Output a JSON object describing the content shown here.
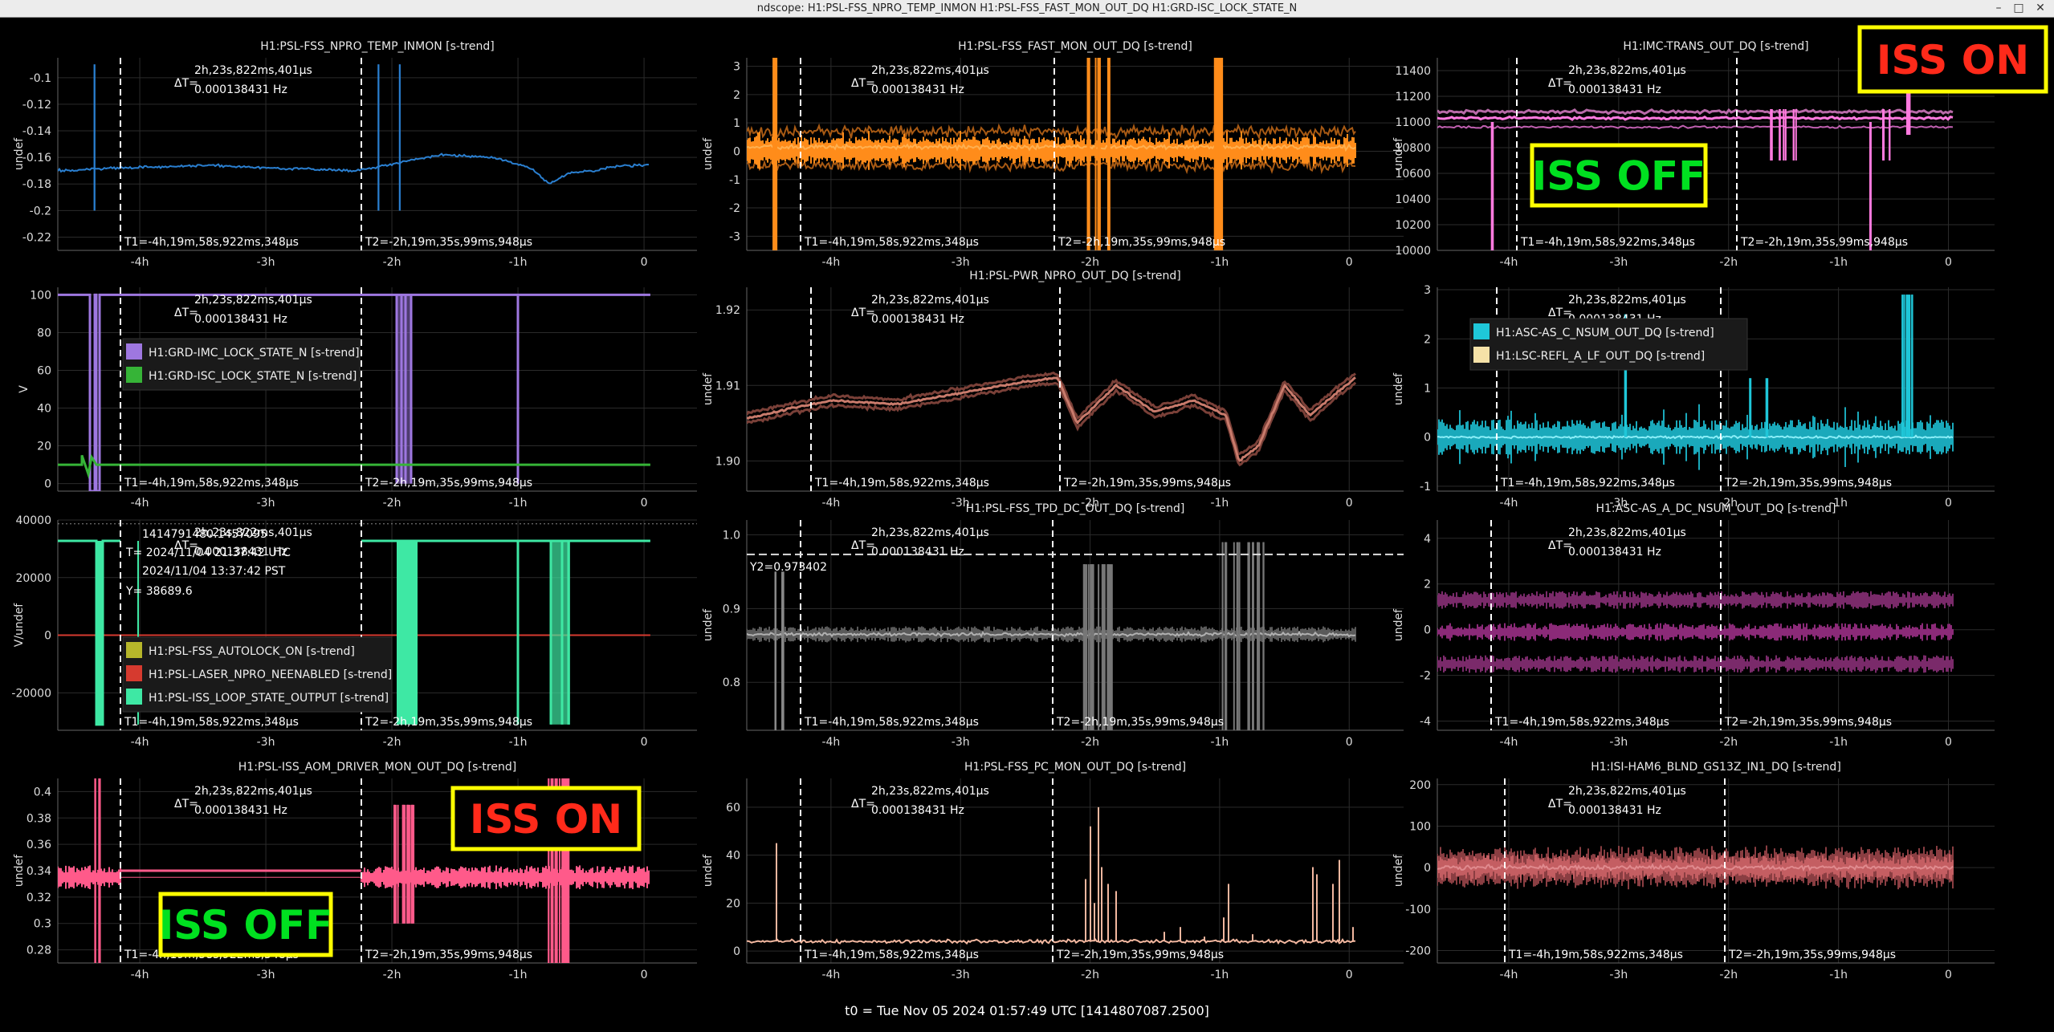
{
  "window": {
    "title": "ndscope: H1:PSL-FSS_NPRO_TEMP_INMON H1:PSL-FSS_FAST_MON_OUT_DQ H1:GRD-ISC_LOCK_STATE_N",
    "controls": [
      "–",
      "□",
      "✕"
    ]
  },
  "cursors": {
    "delta": "ΔT=",
    "delta_time": "2h,23s,822ms,401µs",
    "delta_freq": "0.000138431 Hz",
    "t1": "T1=-4h,19m,58s,922ms,348µs",
    "t2": "T2=-2h,19m,35s,99ms,948µs"
  },
  "xaxis": {
    "ticks": [
      -4,
      -3,
      -2,
      -1,
      0
    ],
    "tick_labels": [
      "-4h",
      "-3h",
      "-2h",
      "-1h",
      "0"
    ],
    "range": [
      -4.65,
      0.42
    ]
  },
  "annotations": {
    "iss_on": "ISS ON",
    "iss_off": "ISS OFF"
  },
  "footer": "t0 = Tue Nov 05 2024 01:57:49 UTC [1414807087.2500]",
  "colors": {
    "background": "#000000",
    "grid": "#2b2b2b",
    "cursor": "#ffffff",
    "iss_on_text": "#ff2a1a",
    "iss_off_text": "#00e020",
    "callout_border": "#ffff00"
  },
  "chart_data": [
    {
      "id": "p11",
      "type": "line",
      "title": "H1:PSL-FSS_NPRO_TEMP_INMON [s-trend]",
      "ylabel": "undef",
      "ylim": [
        -0.23,
        -0.085
      ],
      "yticks": [
        -0.1,
        -0.12,
        -0.14,
        -0.16,
        -0.18,
        -0.2,
        -0.22
      ],
      "ytick_labels": [
        "-0.1",
        "-0.12",
        "-0.14",
        "-0.16",
        "-0.18",
        "-0.2",
        "-0.22"
      ],
      "color": "#2a7fd0",
      "style": "temp",
      "series": [
        {
          "x": [
            -4.6,
            -4.2,
            -3.8,
            -3.4,
            -3.0,
            -2.6,
            -2.3,
            -2.0,
            -1.6,
            -1.2,
            -0.9,
            -0.75,
            -0.6,
            -0.4,
            -0.2,
            0.05
          ],
          "values": [
            -0.17,
            -0.168,
            -0.167,
            -0.166,
            -0.168,
            -0.169,
            -0.17,
            -0.165,
            -0.158,
            -0.16,
            -0.168,
            -0.18,
            -0.172,
            -0.17,
            -0.166,
            -0.166
          ]
        }
      ]
    },
    {
      "id": "p12",
      "type": "line",
      "title": "H1:PSL-FSS_FAST_MON_OUT_DQ [s-trend]",
      "ylabel": "undef",
      "ylim": [
        -3.5,
        3.3
      ],
      "yticks": [
        3,
        2,
        1,
        0,
        -1,
        -2,
        -3
      ],
      "ytick_labels": [
        "3",
        "2",
        "1",
        "0",
        "-1",
        "-2",
        "-3"
      ],
      "color": "#ff8c1a",
      "style": "fast",
      "series": [
        {
          "name": "mean",
          "values": [
            0.2
          ]
        },
        {
          "name": "min",
          "values": [
            -0.3
          ]
        },
        {
          "name": "max",
          "values": [
            0.7
          ]
        }
      ]
    },
    {
      "id": "p13",
      "type": "line",
      "title": "H1:IMC-TRANS_OUT_DQ [s-trend]",
      "ylabel": "undef",
      "ylim": [
        10000,
        11500
      ],
      "yticks": [
        11400,
        11200,
        11000,
        10800,
        10600,
        10400,
        10200,
        10000
      ],
      "ytick_labels": [
        "11400",
        "11200",
        "11000",
        "10800",
        "10600",
        "10400",
        "10200",
        "10000"
      ],
      "color": "#ff7adf",
      "style": "imc",
      "series": [
        {
          "name": "max",
          "values": [
            11080
          ]
        },
        {
          "name": "mean",
          "values": [
            11030
          ]
        },
        {
          "name": "min",
          "values": [
            10960
          ]
        }
      ]
    },
    {
      "id": "p21",
      "type": "line",
      "title": "",
      "ylabel": "V",
      "ylim": [
        -4,
        104
      ],
      "yticks": [
        100,
        80,
        60,
        40,
        20,
        0
      ],
      "ytick_labels": [
        "100",
        "80",
        "60",
        "40",
        "20",
        "0"
      ],
      "style": "grd",
      "legend": [
        {
          "name": "H1:GRD-IMC_LOCK_STATE_N [s-trend]",
          "color": "#9e77e0"
        },
        {
          "name": "H1:GRD-ISC_LOCK_STATE_N [s-trend]",
          "color": "#36b437"
        }
      ],
      "series": [
        {
          "name": "H1:GRD-IMC_LOCK_STATE_N [s-trend]",
          "values": [
            100
          ]
        },
        {
          "name": "H1:GRD-ISC_LOCK_STATE_N [s-trend]",
          "values": [
            10
          ]
        }
      ]
    },
    {
      "id": "p22",
      "type": "line",
      "title": "H1:PSL-PWR_NPRO_OUT_DQ [s-trend]",
      "ylabel": "undef",
      "ylim": [
        1.896,
        1.923
      ],
      "yticks": [
        1.92,
        1.91,
        1.9
      ],
      "ytick_labels": [
        "1.92",
        "1.91",
        "1.90"
      ],
      "color": "#c97b6c",
      "style": "pwr",
      "series": [
        {
          "x": [
            -4.7,
            -4.55,
            -4.3,
            -4.0,
            -3.5,
            -3.0,
            -2.5,
            -2.25,
            -2.1,
            -1.8,
            -1.5,
            -1.2,
            -0.95,
            -0.85,
            -0.7,
            -0.5,
            -0.3,
            -0.1,
            0.05
          ],
          "values": [
            1.9055,
            1.906,
            1.907,
            1.908,
            1.9075,
            1.909,
            1.9105,
            1.911,
            1.905,
            1.91,
            1.9065,
            1.908,
            1.906,
            1.9,
            1.902,
            1.91,
            1.906,
            1.909,
            1.911
          ]
        }
      ]
    },
    {
      "id": "p23",
      "type": "line",
      "title": "",
      "ylabel": "undef",
      "ylim": [
        -1.1,
        3.05
      ],
      "yticks": [
        3,
        2,
        1,
        0,
        -1
      ],
      "ytick_labels": [
        "3",
        "2",
        "1",
        "0",
        "-1"
      ],
      "style": "asc",
      "legend": [
        {
          "name": "H1:ASC-AS_C_NSUM_OUT_DQ [s-trend]",
          "color": "#1fc7d9"
        },
        {
          "name": "H1:LSC-REFL_A_LF_OUT_DQ [s-trend]",
          "color": "#f6e2a8"
        }
      ],
      "series": [
        {
          "name": "H1:ASC-AS_C_NSUM_OUT_DQ [s-trend]",
          "values": [
            0
          ]
        },
        {
          "name": "H1:LSC-REFL_A_LF_OUT_DQ [s-trend]",
          "values": [
            0
          ]
        }
      ]
    },
    {
      "id": "p31",
      "type": "line",
      "title": "",
      "ylabel": "V/undef",
      "ylim": [
        -33000,
        40000
      ],
      "yticks": [
        40000,
        20000,
        0,
        -20000
      ],
      "ytick_labels": [
        "40000",
        "20000",
        "0",
        "-20000"
      ],
      "style": "iss",
      "cursor_readout": {
        "gps": "1414791480.1457095",
        "utc": "T= 2024/11/04 21:37:42 UTC",
        "local": "2024/11/04 13:37:42 PST",
        "y": "Y= 38689.6"
      },
      "legend": [
        {
          "name": "H1:PSL-FSS_AUTOLOCK_ON [s-trend]",
          "color": "#b6b62a"
        },
        {
          "name": "H1:PSL-LASER_NPRO_NEENABLED [s-trend]",
          "color": "#d63a2f"
        },
        {
          "name": "H1:PSL-ISS_LOOP_STATE_OUTPUT [s-trend]",
          "color": "#3ee8a4"
        }
      ],
      "series": [
        {
          "name": "H1:PSL-ISS_LOOP_STATE_OUTPUT [s-trend]",
          "values": [
            32768
          ]
        },
        {
          "name": "H1:PSL-LASER_NPRO_NEENABLED [s-trend]",
          "values": [
            0
          ]
        }
      ]
    },
    {
      "id": "p32",
      "type": "line",
      "title": "H1:PSL-FSS_TPD_DC_OUT_DQ [s-trend]",
      "ylabel": "undef",
      "ylim": [
        0.735,
        1.02
      ],
      "yticks": [
        1.0,
        0.9,
        0.8
      ],
      "ytick_labels": [
        "1.0",
        "0.9",
        "0.8"
      ],
      "color": "#9a9a9a",
      "style": "tpd",
      "y2": 0.973402,
      "y2_label": "Y2=0.973402",
      "series": [
        {
          "name": "mean",
          "values": [
            0.865
          ]
        }
      ]
    },
    {
      "id": "p33",
      "type": "line",
      "title": "H1:ASC-AS_A_DC_NSUM_OUT_DQ [s-trend]",
      "ylabel": "undef",
      "ylim": [
        -4.4,
        4.8
      ],
      "yticks": [
        4,
        2,
        0,
        -2,
        -4
      ],
      "ytick_labels": [
        "4",
        "2",
        "0",
        "-2",
        "-4"
      ],
      "color": "#8b2a78",
      "style": "ascA",
      "series": [
        {
          "name": "max",
          "values": [
            1.3
          ]
        },
        {
          "name": "mean",
          "values": [
            -0.1
          ]
        },
        {
          "name": "min",
          "values": [
            -1.5
          ]
        }
      ]
    },
    {
      "id": "p41",
      "type": "line",
      "title": "H1:PSL-ISS_AOM_DRIVER_MON_OUT_DQ [s-trend]",
      "ylabel": "undef",
      "ylim": [
        0.27,
        0.41
      ],
      "yticks": [
        0.4,
        0.38,
        0.36,
        0.34,
        0.32,
        0.3,
        0.28
      ],
      "ytick_labels": [
        "0.4",
        "0.38",
        "0.36",
        "0.34",
        "0.32",
        "0.3",
        "0.28"
      ],
      "color": "#ff5a8a",
      "style": "aom",
      "series": [
        {
          "name": "mean",
          "values": [
            0.335
          ]
        },
        {
          "name": "iss_off_level",
          "values": [
            0.34
          ]
        }
      ]
    },
    {
      "id": "p42",
      "type": "line",
      "title": "H1:PSL-FSS_PC_MON_OUT_DQ [s-trend]",
      "ylabel": "undef",
      "ylim": [
        -5,
        72
      ],
      "yticks": [
        60,
        40,
        20,
        0
      ],
      "ytick_labels": [
        "60",
        "40",
        "20",
        "0"
      ],
      "color": "#f2b79f",
      "style": "pc",
      "series": [
        {
          "name": "mean",
          "values": [
            4
          ]
        }
      ]
    },
    {
      "id": "p43",
      "type": "line",
      "title": "H1:ISI-HAM6_BLND_GS13Z_IN1_DQ [s-trend]",
      "ylabel": "undef",
      "ylim": [
        -230,
        215
      ],
      "yticks": [
        200,
        100,
        0,
        -100,
        -200
      ],
      "ytick_labels": [
        "200",
        "100",
        "0",
        "-100",
        "-200"
      ],
      "color": "#c45e62",
      "style": "isi",
      "series": [
        {
          "name": "mean",
          "values": [
            0
          ]
        }
      ]
    }
  ]
}
